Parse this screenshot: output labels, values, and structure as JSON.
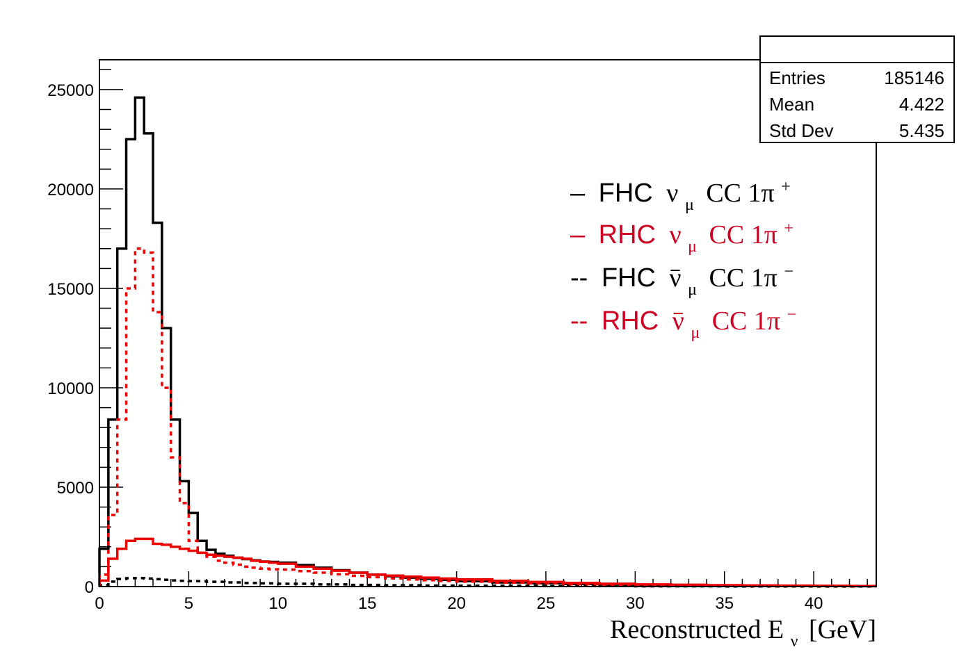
{
  "stats_box": {
    "rows": [
      {
        "label": "Entries",
        "value": "185146"
      },
      {
        "label": "Mean",
        "value": "4.422"
      },
      {
        "label": "Std Dev",
        "value": "5.435"
      }
    ]
  },
  "legend": [
    {
      "prefix": "–",
      "mode": "FHC",
      "nu": "ν",
      "bar": false,
      "sub": "μ",
      "tail": "CC 1π",
      "sup": "+",
      "color": "#000000",
      "dash": "solid"
    },
    {
      "prefix": "–",
      "mode": "RHC",
      "nu": "ν",
      "bar": false,
      "sub": "μ",
      "tail": "CC 1π",
      "sup": "+",
      "color": "#cc0022",
      "dash": "solid"
    },
    {
      "prefix": "--",
      "mode": "FHC",
      "nu": "ν",
      "bar": true,
      "sub": "μ",
      "tail": "CC 1π",
      "sup": "−",
      "color": "#000000",
      "dash": "dashed"
    },
    {
      "prefix": "--",
      "mode": "RHC",
      "nu": "ν",
      "bar": true,
      "sub": "μ",
      "tail": "CC 1π",
      "sup": "−",
      "color": "#cc0022",
      "dash": "dashed"
    }
  ],
  "xlabel": {
    "main": "Reconstructed E",
    "sub": "ν",
    "unit": "[GeV]"
  },
  "chart_data": {
    "type": "histogram",
    "xlim": [
      0,
      43.5
    ],
    "ylim": [
      0,
      26500
    ],
    "xticks": [
      0,
      5,
      10,
      15,
      20,
      25,
      30,
      35,
      40
    ],
    "yticks": [
      0,
      5000,
      10000,
      15000,
      20000,
      25000
    ],
    "grid": false,
    "legend_position": "top-right",
    "series": [
      {
        "name": "FHC νμ CC 1π+",
        "color": "#000000",
        "dash": "solid",
        "x": [
          0,
          0.5,
          1,
          1.5,
          2,
          2.5,
          3,
          3.5,
          4,
          4.5,
          5,
          5.5,
          6,
          6.5,
          7,
          7.5,
          8,
          8.5,
          9,
          9.5,
          10,
          11,
          12,
          13,
          14,
          15,
          16,
          17,
          18,
          19,
          20,
          22,
          24,
          26,
          28,
          30,
          32,
          34,
          36,
          38,
          40,
          42,
          43.5
        ],
        "y": [
          1900,
          8400,
          17000,
          22500,
          24600,
          22800,
          18300,
          13000,
          8400,
          5300,
          3700,
          2300,
          1850,
          1650,
          1550,
          1450,
          1380,
          1320,
          1260,
          1240,
          1200,
          1080,
          950,
          820,
          700,
          600,
          520,
          450,
          390,
          340,
          270,
          210,
          170,
          130,
          100,
          80,
          60,
          50,
          40,
          30,
          25,
          20
        ]
      },
      {
        "name": "RHC νμ CC 1π+",
        "color": "#ee0000",
        "dash": "solid",
        "x": [
          0,
          0.5,
          1,
          1.5,
          2,
          2.5,
          3,
          3.5,
          4,
          4.5,
          5,
          5.5,
          6,
          6.5,
          7,
          7.5,
          8,
          8.5,
          9,
          9.5,
          10,
          11,
          12,
          13,
          14,
          15,
          16,
          17,
          18,
          19,
          20,
          22,
          24,
          26,
          28,
          30,
          32,
          34,
          36,
          38,
          40,
          42,
          43.5
        ],
        "y": [
          300,
          1400,
          1900,
          2300,
          2400,
          2400,
          2150,
          2100,
          2000,
          1900,
          1800,
          1700,
          1600,
          1550,
          1500,
          1450,
          1400,
          1300,
          1250,
          1200,
          1150,
          1000,
          900,
          800,
          700,
          600,
          550,
          500,
          450,
          400,
          360,
          290,
          230,
          180,
          140,
          110,
          90,
          70,
          55,
          45,
          35,
          25
        ]
      },
      {
        "name": "FHC ν̄μ CC 1π−",
        "color": "#000000",
        "dash": "dashed",
        "x": [
          0,
          0.5,
          1,
          1.5,
          2,
          2.5,
          3,
          3.5,
          4,
          4.5,
          5,
          6,
          7,
          8,
          9,
          10,
          12,
          14,
          16,
          18,
          20,
          25,
          30,
          35,
          40,
          43.5
        ],
        "y": [
          80,
          250,
          380,
          420,
          430,
          400,
          370,
          340,
          310,
          290,
          270,
          240,
          210,
          180,
          160,
          140,
          110,
          85,
          65,
          50,
          40,
          25,
          15,
          10,
          5
        ]
      },
      {
        "name": "RHC ν̄μ CC 1π−",
        "color": "#ee0000",
        "dash": "dashed",
        "x": [
          0,
          0.5,
          1,
          1.5,
          2,
          2.5,
          3,
          3.5,
          4,
          4.5,
          5,
          5.5,
          6,
          6.5,
          7,
          7.5,
          8,
          8.5,
          9,
          9.5,
          10,
          11,
          12,
          13,
          14,
          15,
          16,
          17,
          18,
          19,
          20,
          22,
          24,
          26,
          28,
          30,
          32,
          34,
          36,
          38,
          40,
          42,
          43.5
        ],
        "y": [
          600,
          3600,
          8400,
          15000,
          17000,
          16800,
          13800,
          10000,
          6500,
          4200,
          2300,
          1700,
          1500,
          1300,
          1200,
          1100,
          1000,
          950,
          900,
          870,
          850,
          780,
          700,
          620,
          540,
          470,
          410,
          360,
          320,
          280,
          250,
          200,
          160,
          120,
          95,
          75,
          60,
          45,
          35,
          28,
          22,
          18
        ]
      }
    ]
  }
}
